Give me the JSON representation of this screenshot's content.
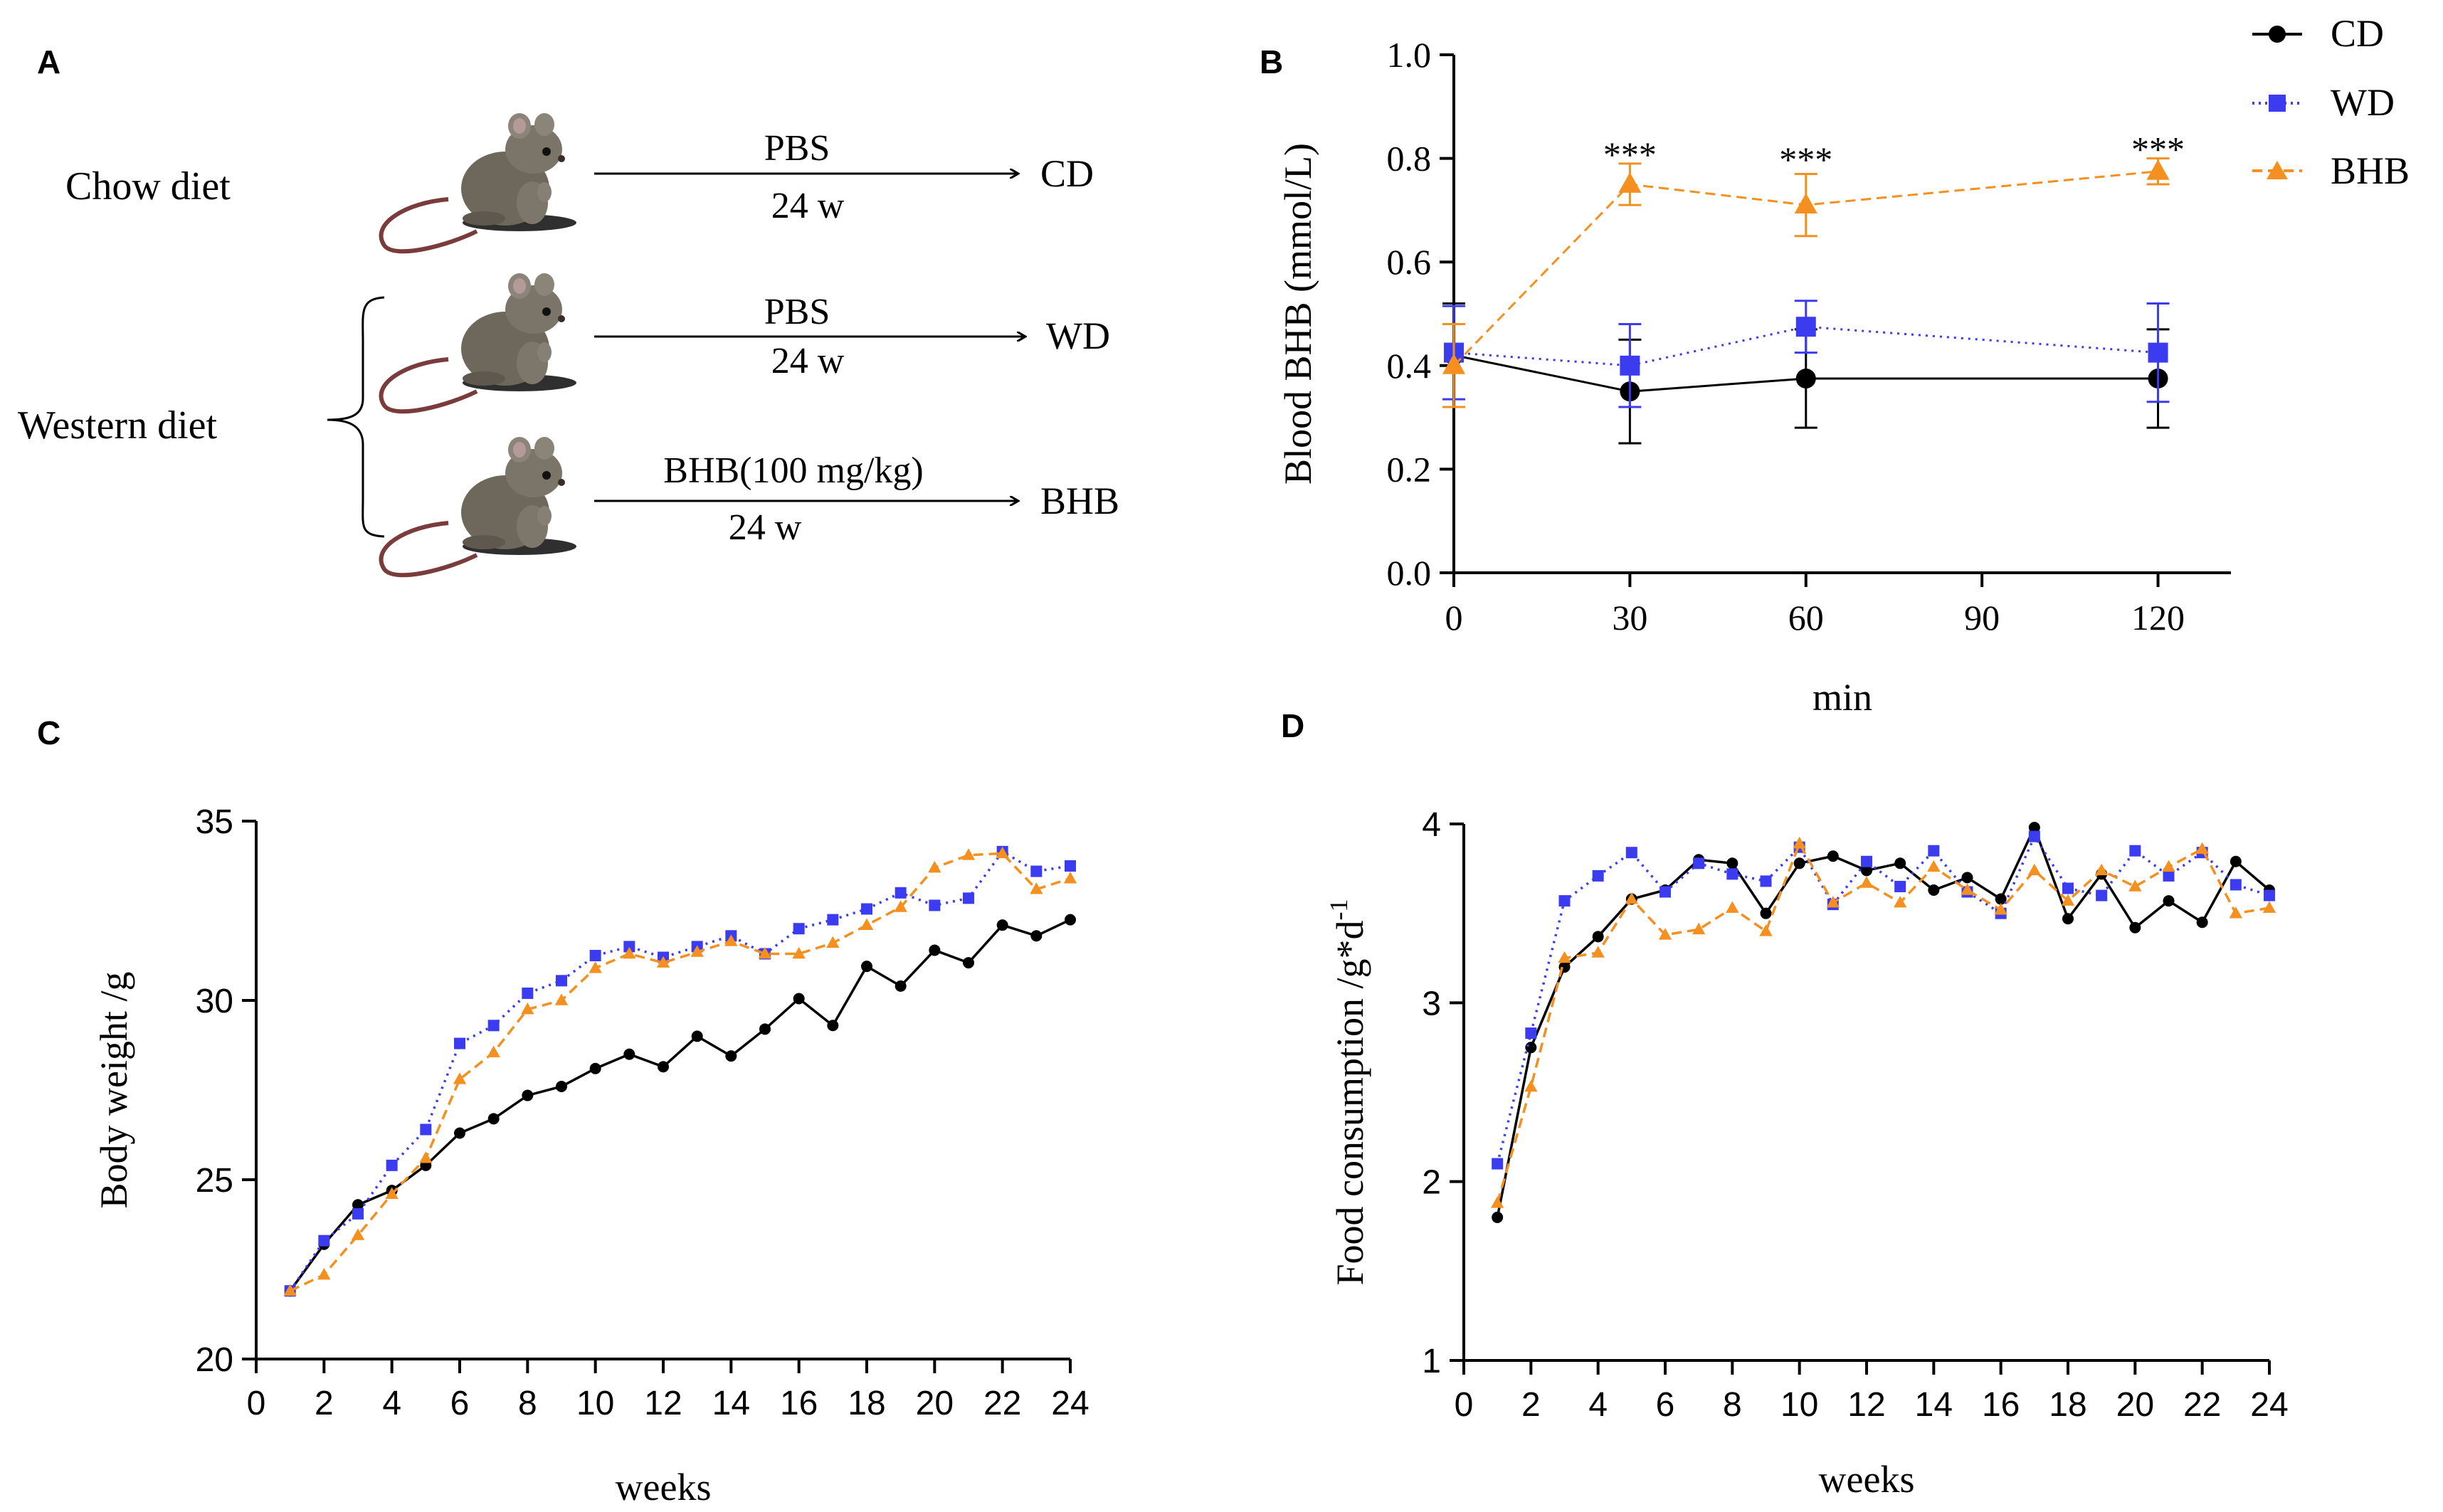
{
  "panel_labels": [
    "A",
    "B",
    "C",
    "D"
  ],
  "colors": {
    "CD": "#000000",
    "WD": "#3b3bf0",
    "BHB": "#f39020",
    "axis": "#000000"
  },
  "schematic": {
    "chow_label": "Chow diet",
    "western_label": "Western diet",
    "rows": [
      {
        "top_text": "PBS",
        "bottom_text": "24 w",
        "target": "CD"
      },
      {
        "top_text": "PBS",
        "bottom_text": "24 w",
        "target": "WD"
      },
      {
        "top_text": "BHB(100 mg/kg)",
        "bottom_text": "24 w",
        "target": "BHB"
      }
    ]
  },
  "chart_data": [
    {
      "id": "B",
      "type": "line",
      "xlabel": "min",
      "ylabel": "Blood BHB  (mmol/L)",
      "x": [
        0,
        30,
        60,
        120
      ],
      "xticks": [
        0,
        30,
        60,
        90,
        120
      ],
      "xlim": [
        0,
        130
      ],
      "yticks": [
        "0.0",
        "0.2",
        "0.4",
        "0.6",
        "0.8",
        "1.0"
      ],
      "ylim": [
        0,
        1.0
      ],
      "legend": [
        "CD",
        "WD",
        "BHB"
      ],
      "annotations": [
        {
          "x": 30,
          "y": 0.79,
          "text": "***"
        },
        {
          "x": 60,
          "y": 0.78,
          "text": "***"
        },
        {
          "x": 120,
          "y": 0.8,
          "text": "***"
        }
      ],
      "series": [
        {
          "name": "CD",
          "values": [
            0.42,
            0.35,
            0.375,
            0.375
          ],
          "err": [
            0.1,
            0.1,
            0.095,
            0.095
          ]
        },
        {
          "name": "WD",
          "values": [
            0.425,
            0.4,
            0.475,
            0.425
          ],
          "err": [
            0.09,
            0.08,
            0.05,
            0.095
          ]
        },
        {
          "name": "BHB",
          "values": [
            0.4,
            0.75,
            0.71,
            0.775
          ],
          "err": [
            0.08,
            0.04,
            0.06,
            0.025
          ]
        }
      ]
    },
    {
      "id": "C",
      "type": "line",
      "xlabel": "weeks",
      "ylabel": "Body weight /g",
      "x": [
        1,
        2,
        3,
        4,
        5,
        6,
        7,
        8,
        9,
        10,
        11,
        12,
        13,
        14,
        15,
        16,
        17,
        18,
        19,
        20,
        21,
        22,
        23,
        24
      ],
      "xticks": [
        0,
        2,
        4,
        6,
        8,
        10,
        12,
        14,
        16,
        18,
        20,
        22,
        24
      ],
      "xlim": [
        0,
        24
      ],
      "yticks": [
        "20",
        "25",
        "30",
        "35"
      ],
      "ylim": [
        20,
        35
      ],
      "series": [
        {
          "name": "CD",
          "values": [
            21.9,
            23.2,
            24.3,
            24.7,
            25.4,
            26.3,
            26.7,
            27.35,
            27.6,
            28.1,
            28.5,
            28.15,
            29.0,
            28.45,
            29.2,
            30.05,
            29.3,
            30.95,
            30.4,
            31.4,
            31.05,
            32.1,
            31.8,
            32.25
          ]
        },
        {
          "name": "WD",
          "values": [
            21.9,
            23.3,
            24.05,
            25.4,
            26.4,
            28.8,
            29.3,
            30.2,
            30.55,
            31.25,
            31.5,
            31.2,
            31.5,
            31.8,
            31.3,
            32.0,
            32.25,
            32.55,
            33.0,
            32.65,
            32.85,
            34.15,
            33.6,
            33.75
          ]
        },
        {
          "name": "BHB",
          "values": [
            21.9,
            22.35,
            23.45,
            24.6,
            25.6,
            27.8,
            28.55,
            29.75,
            30.0,
            30.9,
            31.3,
            31.05,
            31.35,
            31.65,
            31.3,
            31.3,
            31.6,
            32.1,
            32.6,
            33.7,
            34.05,
            34.1,
            33.1,
            33.4
          ]
        }
      ]
    },
    {
      "id": "D",
      "type": "line",
      "xlabel": "weeks",
      "ylabel": "Food consumption  /g*d",
      "ylabel_sup": "-1",
      "x": [
        1,
        2,
        3,
        4,
        5,
        6,
        7,
        8,
        9,
        10,
        11,
        12,
        13,
        14,
        15,
        16,
        17,
        18,
        19,
        20,
        21,
        22,
        23,
        24
      ],
      "xticks": [
        0,
        2,
        4,
        6,
        8,
        10,
        12,
        14,
        16,
        18,
        20,
        22,
        24
      ],
      "xlim": [
        0,
        24
      ],
      "yticks": [
        "1",
        "2",
        "3",
        "4"
      ],
      "ylim": [
        1,
        4
      ],
      "series": [
        {
          "name": "CD",
          "values": [
            1.8,
            2.75,
            3.2,
            3.37,
            3.58,
            3.63,
            3.8,
            3.78,
            3.5,
            3.78,
            3.82,
            3.74,
            3.78,
            3.63,
            3.7,
            3.58,
            3.98,
            3.47,
            3.72,
            3.42,
            3.57,
            3.45,
            3.79,
            3.63
          ]
        },
        {
          "name": "WD",
          "values": [
            2.1,
            2.83,
            3.57,
            3.71,
            3.84,
            3.62,
            3.78,
            3.72,
            3.68,
            3.87,
            3.55,
            3.79,
            3.65,
            3.85,
            3.62,
            3.5,
            3.93,
            3.64,
            3.6,
            3.85,
            3.71,
            3.84,
            3.66,
            3.6
          ]
        },
        {
          "name": "BHB",
          "values": [
            1.88,
            2.53,
            3.25,
            3.28,
            3.58,
            3.38,
            3.41,
            3.53,
            3.4,
            3.89,
            3.56,
            3.67,
            3.56,
            3.76,
            3.63,
            3.52,
            3.74,
            3.57,
            3.74,
            3.65,
            3.76,
            3.86,
            3.5,
            3.53
          ]
        }
      ]
    }
  ]
}
